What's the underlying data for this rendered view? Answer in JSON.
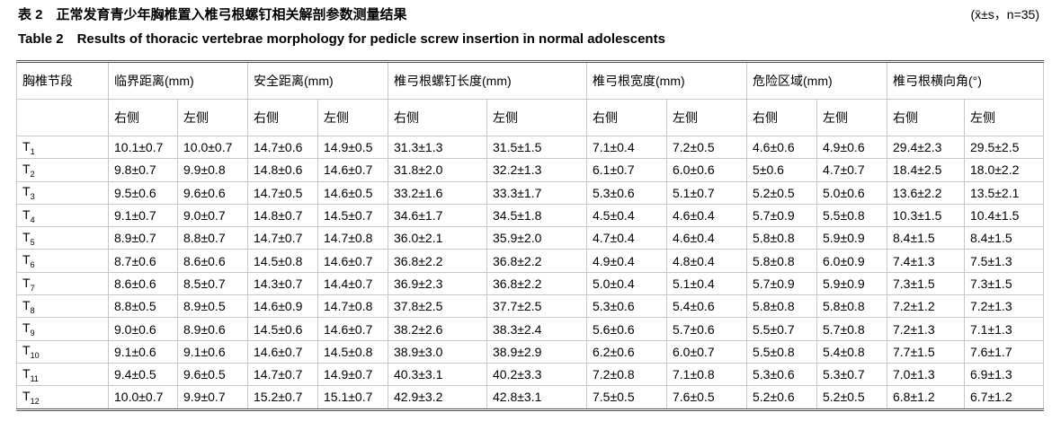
{
  "header": {
    "title_cn": "表 2　正常发育青少年胸椎置入椎弓根螺钉相关解剖参数测量结果",
    "stats_note": "(x̄±s，n=35)",
    "title_en": "Table 2　Results of thoracic vertebrae morphology for pedicle screw insertion in normal adolescents"
  },
  "table": {
    "first_header": "胸椎节段",
    "groups": [
      {
        "name": "临界距离(mm)",
        "sides": [
          "右侧",
          "左侧"
        ]
      },
      {
        "name": "安全距离(mm)",
        "sides": [
          "右侧",
          "左侧"
        ]
      },
      {
        "name": "椎弓根螺钉长度(mm)",
        "sides": [
          "右侧",
          "左侧"
        ]
      },
      {
        "name": "椎弓根宽度(mm)",
        "sides": [
          "右侧",
          "左侧"
        ]
      },
      {
        "name": "危险区域(mm)",
        "sides": [
          "右侧",
          "左侧"
        ]
      },
      {
        "name": "椎弓根横向角(°)",
        "sides": [
          "右侧",
          "左侧"
        ]
      }
    ],
    "rows": [
      {
        "segment": "T",
        "sub": "1",
        "values": [
          "10.1±0.7",
          "10.0±0.7",
          "14.7±0.6",
          "14.9±0.5",
          "31.3±1.3",
          "31.5±1.5",
          "7.1±0.4",
          "7.2±0.5",
          "4.6±0.6",
          "4.9±0.6",
          "29.4±2.3",
          "29.5±2.5"
        ]
      },
      {
        "segment": "T",
        "sub": "2",
        "values": [
          "9.8±0.7",
          "9.9±0.8",
          "14.8±0.6",
          "14.6±0.7",
          "31.8±2.0",
          "32.2±1.3",
          "6.1±0.7",
          "6.0±0.6",
          "5±0.6",
          "4.7±0.7",
          "18.4±2.5",
          "18.0±2.2"
        ]
      },
      {
        "segment": "T",
        "sub": "3",
        "values": [
          "9.5±0.6",
          "9.6±0.6",
          "14.7±0.5",
          "14.6±0.5",
          "33.2±1.6",
          "33.3±1.7",
          "5.3±0.6",
          "5.1±0.7",
          "5.2±0.5",
          "5.0±0.6",
          "13.6±2.2",
          "13.5±2.1"
        ]
      },
      {
        "segment": "T",
        "sub": "4",
        "values": [
          "9.1±0.7",
          "9.0±0.7",
          "14.8±0.7",
          "14.5±0.7",
          "34.6±1.7",
          "34.5±1.8",
          "4.5±0.4",
          "4.6±0.4",
          "5.7±0.9",
          "5.5±0.8",
          "10.3±1.5",
          "10.4±1.5"
        ]
      },
      {
        "segment": "T",
        "sub": "5",
        "values": [
          "8.9±0.7",
          "8.8±0.7",
          "14.7±0.7",
          "14.7±0.8",
          "36.0±2.1",
          "35.9±2.0",
          "4.7±0.4",
          "4.6±0.4",
          "5.8±0.8",
          "5.9±0.9",
          "8.4±1.5",
          "8.4±1.5"
        ]
      },
      {
        "segment": "T",
        "sub": "6",
        "values": [
          "8.7±0.6",
          "8.6±0.6",
          "14.5±0.8",
          "14.6±0.7",
          "36.8±2.2",
          "36.8±2.2",
          "4.9±0.4",
          "4.8±0.4",
          "5.8±0.8",
          "6.0±0.9",
          "7.4±1.3",
          "7.5±1.3"
        ]
      },
      {
        "segment": "T",
        "sub": "7",
        "values": [
          "8.6±0.6",
          "8.5±0.7",
          "14.3±0.7",
          "14.4±0.7",
          "36.9±2.3",
          "36.8±2.2",
          "5.0±0.4",
          "5.1±0.4",
          "5.7±0.9",
          "5.9±0.9",
          "7.3±1.5",
          "7.3±1.5"
        ]
      },
      {
        "segment": "T",
        "sub": "8",
        "values": [
          "8.8±0.5",
          "8.9±0.5",
          "14.6±0.9",
          "14.7±0.8",
          "37.8±2.5",
          "37.7±2.5",
          "5.3±0.6",
          "5.4±0.6",
          "5.8±0.8",
          "5.8±0.8",
          "7.2±1.2",
          "7.2±1.3"
        ]
      },
      {
        "segment": "T",
        "sub": "9",
        "values": [
          "9.0±0.6",
          "8.9±0.6",
          "14.5±0.6",
          "14.6±0.7",
          "38.2±2.6",
          "38.3±2.4",
          "5.6±0.6",
          "5.7±0.6",
          "5.5±0.7",
          "5.7±0.8",
          "7.2±1.3",
          "7.1±1.3"
        ]
      },
      {
        "segment": "T",
        "sub": "10",
        "values": [
          "9.1±0.6",
          "9.1±0.6",
          "14.6±0.7",
          "14.5±0.8",
          "38.9±3.0",
          "38.9±2.9",
          "6.2±0.6",
          "6.0±0.7",
          "5.5±0.8",
          "5.4±0.8",
          "7.7±1.5",
          "7.6±1.7"
        ]
      },
      {
        "segment": "T",
        "sub": "11",
        "values": [
          "9.4±0.5",
          "9.6±0.5",
          "14.7±0.7",
          "14.9±0.7",
          "40.3±3.1",
          "40.2±3.3",
          "7.2±0.8",
          "7.1±0.8",
          "5.3±0.6",
          "5.3±0.7",
          "7.0±1.3",
          "6.9±1.3"
        ]
      },
      {
        "segment": "T",
        "sub": "12",
        "values": [
          "10.0±0.7",
          "9.9±0.7",
          "15.2±0.7",
          "15.1±0.7",
          "42.9±3.2",
          "42.8±3.1",
          "7.5±0.5",
          "7.6±0.5",
          "5.2±0.6",
          "5.2±0.5",
          "6.8±1.2",
          "6.7±1.2"
        ]
      }
    ]
  }
}
